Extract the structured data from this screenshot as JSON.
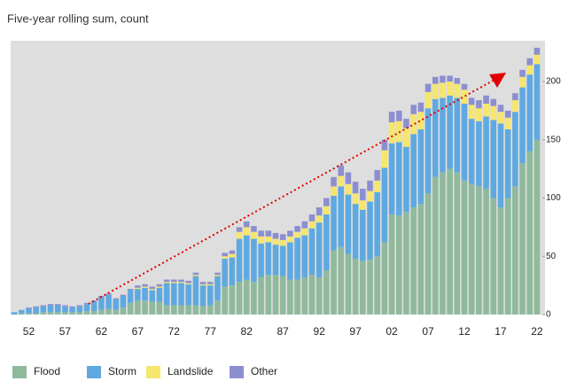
{
  "chart_data": {
    "type": "stacked_bar",
    "title": "Five-year rolling sum, count",
    "categories": [
      null,
      null,
      "52",
      null,
      null,
      null,
      null,
      "57",
      null,
      null,
      null,
      null,
      "62",
      null,
      null,
      null,
      null,
      "67",
      null,
      null,
      null,
      null,
      "72",
      null,
      null,
      null,
      null,
      "77",
      null,
      null,
      null,
      null,
      "82",
      null,
      null,
      null,
      null,
      "87",
      null,
      null,
      null,
      null,
      "92",
      null,
      null,
      null,
      null,
      "97",
      null,
      null,
      null,
      null,
      "02",
      null,
      null,
      null,
      null,
      "07",
      null,
      null,
      null,
      null,
      "12",
      null,
      null,
      null,
      null,
      "17",
      null,
      null,
      null,
      null,
      "22"
    ],
    "series": [
      {
        "name": "Flood",
        "color": "#8fba9c",
        "values": [
          0,
          1,
          1,
          1,
          2,
          2,
          2,
          2,
          2,
          2,
          3,
          3,
          4,
          5,
          4,
          6,
          10,
          12,
          12,
          11,
          11,
          8,
          8,
          8,
          8,
          8,
          7,
          8,
          12,
          24,
          25,
          28,
          30,
          28,
          32,
          34,
          34,
          33,
          30,
          30,
          32,
          34,
          32,
          38,
          55,
          58,
          52,
          48,
          46,
          47,
          50,
          62,
          86,
          85,
          88,
          92,
          95,
          104,
          118,
          122,
          125,
          122,
          115,
          112,
          110,
          108,
          100,
          92,
          100,
          110,
          130,
          140,
          150
        ]
      },
      {
        "name": "Storm",
        "color": "#5fa9e0",
        "values": [
          2,
          3,
          4,
          5,
          5,
          6,
          6,
          5,
          4,
          5,
          6,
          8,
          11,
          12,
          9,
          10,
          11,
          10,
          11,
          10,
          12,
          19,
          19,
          19,
          18,
          25,
          18,
          17,
          21,
          24,
          24,
          37,
          38,
          37,
          29,
          28,
          26,
          26,
          32,
          36,
          36,
          40,
          47,
          48,
          47,
          52,
          51,
          47,
          44,
          50,
          55,
          64,
          61,
          63,
          56,
          63,
          64,
          73,
          67,
          64,
          63,
          64,
          66,
          56,
          56,
          62,
          67,
          72,
          59,
          64,
          65,
          66,
          65
        ]
      },
      {
        "name": "Landslide",
        "color": "#f6e66c",
        "values": [
          0,
          0,
          0,
          0,
          0,
          0,
          0,
          0,
          0,
          0,
          0,
          0,
          0,
          0,
          0,
          0,
          0,
          1,
          1,
          1,
          1,
          1,
          1,
          1,
          1,
          1,
          1,
          1,
          1,
          2,
          3,
          6,
          7,
          6,
          6,
          5,
          5,
          5,
          5,
          5,
          6,
          6,
          6,
          7,
          8,
          9,
          9,
          9,
          8,
          9,
          10,
          15,
          18,
          18,
          16,
          17,
          15,
          14,
          13,
          13,
          12,
          12,
          12,
          12,
          11,
          11,
          12,
          10,
          10,
          10,
          9,
          8,
          8
        ]
      },
      {
        "name": "Other",
        "color": "#8c8fcf",
        "values": [
          0,
          0,
          1,
          1,
          1,
          1,
          1,
          1,
          1,
          1,
          1,
          1,
          1,
          1,
          1,
          1,
          1,
          2,
          2,
          2,
          2,
          2,
          2,
          2,
          2,
          2,
          2,
          2,
          2,
          3,
          3,
          4,
          5,
          5,
          5,
          5,
          5,
          5,
          5,
          5,
          6,
          6,
          7,
          7,
          8,
          9,
          10,
          10,
          10,
          9,
          9,
          9,
          9,
          9,
          8,
          8,
          8,
          7,
          6,
          6,
          5,
          5,
          5,
          6,
          7,
          7,
          6,
          6,
          6,
          6,
          6,
          6,
          6
        ]
      }
    ],
    "ylim": [
      0,
      235
    ],
    "yticks": [
      0,
      50,
      100,
      150,
      200
    ],
    "grid": false,
    "legend": "bottom"
  }
}
